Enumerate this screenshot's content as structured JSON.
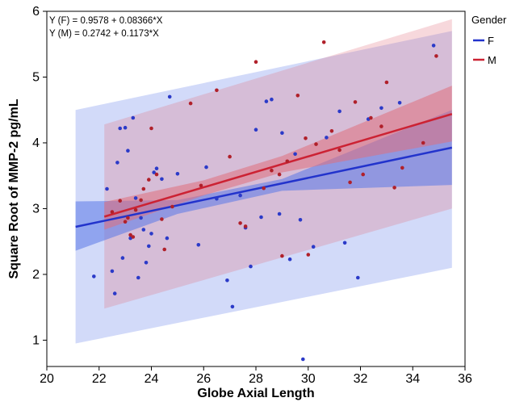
{
  "chart_data": {
    "type": "scatter",
    "xlabel": "Globe Axial Length",
    "ylabel": "Square Root of MMP-2 pg/mL",
    "xlim": [
      20,
      36
    ],
    "ylim": [
      0.6,
      6
    ],
    "x_ticks": [
      "20",
      "22",
      "24",
      "26",
      "28",
      "30",
      "32",
      "34",
      "36"
    ],
    "y_ticks": [
      "1",
      "2",
      "3",
      "4",
      "5",
      "6"
    ],
    "legend_title": "Gender",
    "legend_position": "right",
    "annotations": [
      "Y (F) = 0.9578 + 0.08366*X",
      "Y (M) = 0.2742 + 0.1173*X"
    ],
    "series": [
      {
        "name": "F",
        "color": "#2b3ac8",
        "line_color": "#2233cc",
        "band_color": "#5a78e8",
        "fit": {
          "intercept": 0.9578,
          "slope": 0.08366,
          "x_range": [
            21.1,
            35.5
          ]
        },
        "ci": {
          "x": [
            21.1,
            25,
            29,
            35.5
          ],
          "lower": [
            2.36,
            2.92,
            3.27,
            3.36
          ],
          "upper": [
            3.11,
            3.13,
            3.45,
            4.5
          ]
        },
        "pi": {
          "x": [
            21.1,
            35.5
          ],
          "lower": [
            0.95,
            2.1
          ],
          "upper": [
            4.5,
            5.7
          ]
        },
        "x": [
          21.8,
          22.3,
          22.5,
          22.6,
          22.7,
          22.8,
          22.9,
          23.0,
          23.1,
          23.2,
          23.3,
          23.4,
          23.5,
          23.6,
          23.7,
          23.8,
          23.9,
          24.0,
          24.1,
          24.2,
          24.4,
          24.6,
          24.7,
          25.0,
          25.8,
          26.1,
          26.5,
          26.9,
          27.1,
          27.4,
          27.6,
          27.8,
          28.0,
          28.2,
          28.4,
          28.6,
          28.9,
          29.0,
          29.3,
          29.5,
          29.7,
          29.8,
          30.2,
          30.7,
          31.2,
          31.4,
          31.9,
          32.3,
          32.8,
          33.5,
          34.8
        ],
        "y": [
          1.97,
          3.3,
          2.05,
          1.71,
          3.7,
          4.22,
          2.25,
          4.23,
          3.88,
          2.55,
          4.38,
          3.16,
          1.95,
          2.86,
          2.68,
          2.18,
          2.43,
          2.62,
          3.55,
          3.61,
          3.45,
          2.55,
          4.7,
          3.53,
          2.45,
          3.63,
          3.15,
          1.91,
          1.51,
          3.2,
          2.71,
          2.12,
          4.2,
          2.87,
          4.63,
          4.66,
          2.92,
          4.15,
          2.23,
          3.83,
          2.83,
          0.71,
          2.42,
          4.08,
          4.48,
          2.48,
          1.95,
          4.36,
          4.53,
          4.61,
          5.48
        ]
      },
      {
        "name": "M",
        "color": "#b0202a",
        "line_color": "#cc2233",
        "band_color": "#e0707c",
        "fit": {
          "intercept": 0.2742,
          "slope": 0.1173,
          "x_range": [
            22.2,
            35.5
          ]
        },
        "ci": {
          "x": [
            22.2,
            26,
            29,
            35.5
          ],
          "lower": [
            2.68,
            3.2,
            3.55,
            4.02
          ],
          "upper": [
            3.1,
            3.43,
            3.8,
            4.87
          ]
        },
        "pi": {
          "x": [
            22.2,
            35.5
          ],
          "lower": [
            1.48,
            3.0
          ],
          "upper": [
            4.28,
            5.88
          ]
        },
        "x": [
          22.5,
          22.8,
          23.0,
          23.1,
          23.2,
          23.3,
          23.4,
          23.6,
          23.7,
          23.9,
          24.0,
          24.2,
          24.4,
          24.5,
          24.8,
          25.5,
          25.9,
          26.5,
          27.0,
          27.4,
          27.6,
          28.0,
          28.3,
          28.6,
          28.9,
          29.0,
          29.2,
          29.6,
          29.9,
          30.0,
          30.3,
          30.6,
          30.9,
          31.2,
          31.6,
          31.8,
          32.1,
          32.4,
          32.8,
          33.0,
          33.3,
          33.6,
          34.4,
          34.9
        ],
        "y": [
          2.95,
          3.12,
          2.8,
          2.86,
          2.6,
          2.57,
          2.98,
          3.13,
          3.3,
          3.44,
          4.22,
          3.52,
          2.84,
          2.38,
          3.03,
          4.6,
          3.35,
          4.8,
          3.79,
          2.78,
          2.73,
          5.23,
          3.31,
          3.58,
          3.52,
          2.28,
          3.72,
          4.72,
          4.07,
          2.3,
          3.98,
          5.53,
          4.18,
          3.89,
          3.4,
          4.62,
          3.52,
          4.38,
          4.25,
          4.92,
          3.32,
          3.62,
          4.0,
          5.32
        ]
      }
    ]
  }
}
